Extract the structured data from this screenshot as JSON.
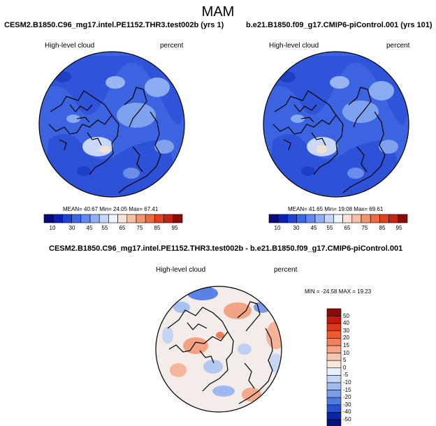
{
  "title": "MAM",
  "panels": [
    {
      "case": "CESM2.B1850.C96_mg17.intel.PE1152.THR3.test002b (yrs 1)",
      "variable": "High-level cloud",
      "units": "percent",
      "stats": "MEAN= 40.67  Min= 24.05  Max= 67.41"
    },
    {
      "case": "b.e21.B1850.f09_g17.CMIP6-piControl.001 (yrs 101)",
      "variable": "High-level cloud",
      "units": "percent",
      "stats": "MEAN= 41.65  Min= 19.08  Max= 69.61"
    }
  ],
  "colorbar": {
    "ticks": [
      "10",
      "30",
      "45",
      "55",
      "65",
      "75",
      "85",
      "95"
    ],
    "colors": [
      "#080a7a",
      "#0a1fb8",
      "#1e44d6",
      "#3c67e6",
      "#6088ef",
      "#90b0f5",
      "#c3d5fa",
      "#eef2fb",
      "#fbe3d6",
      "#f8bfa4",
      "#f4946c",
      "#ee6a42",
      "#e0421e",
      "#c42410",
      "#8a0c06"
    ]
  },
  "diff": {
    "case": "CESM2.B1850.C96_mg17.intel.PE1152.THR3.test002b - b.e21.B1850.f09_g17.CMIP6-piControl.001",
    "variable": "High-level cloud",
    "units": "percent",
    "stats": "MIN = -24.58  MAX =  19.23",
    "ticks": [
      "50",
      "40",
      "30",
      "20",
      "15",
      "10",
      "5",
      "0",
      "-5",
      "-10",
      "-15",
      "-20",
      "-30",
      "-40",
      "-50"
    ],
    "colors": [
      "#8b0a0a",
      "#c21a0c",
      "#e0381a",
      "#ef5a30",
      "#f4805a",
      "#f7a585",
      "#f8c6b0",
      "#fbe6da",
      "#e8eefa",
      "#c5d6f5",
      "#a0bcef",
      "#7a9fe8",
      "#4f7be0",
      "#2652d0",
      "#0c24a8",
      "#08107a"
    ]
  },
  "colors": {
    "map_base": "#3c64e0",
    "diff_base": "#f3ece8"
  }
}
